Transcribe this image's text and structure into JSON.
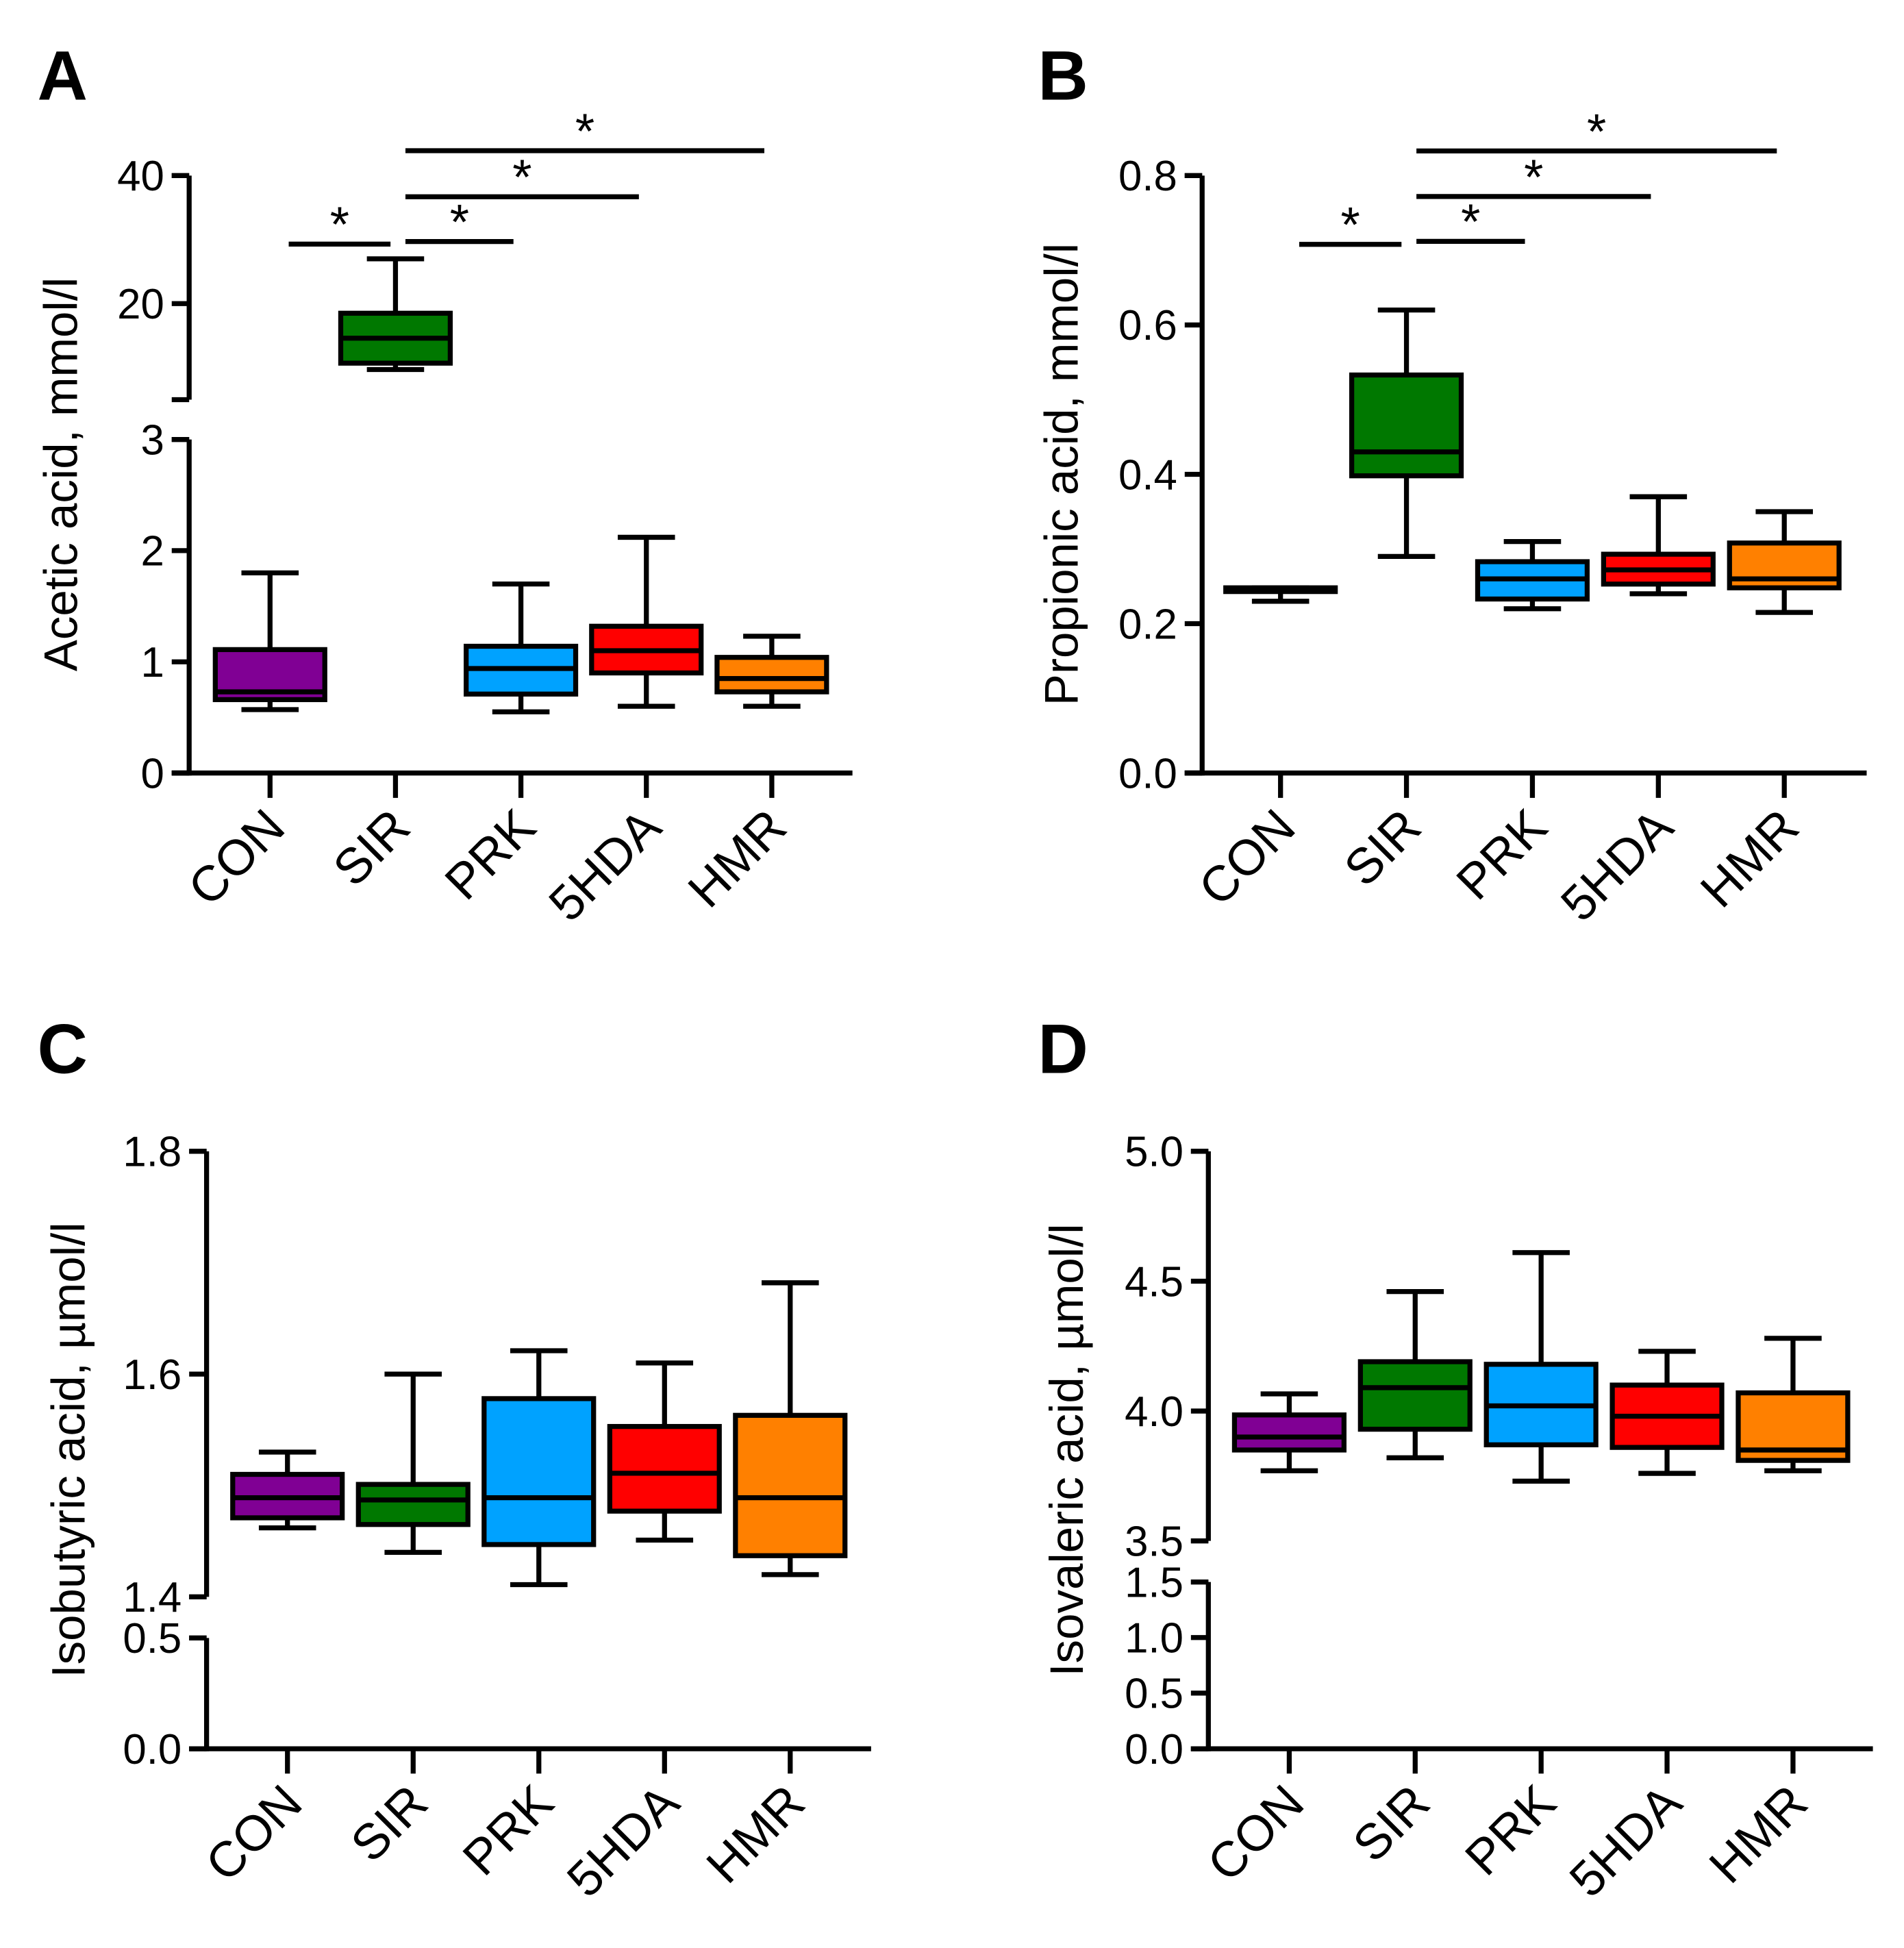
{
  "colors": {
    "CON": "#800094",
    "SIR": "#007800",
    "PRK": "#00a2ff",
    "5HDA": "#ff0000",
    "HMR": "#ff8000"
  },
  "chart_data": [
    {
      "panel": "A",
      "type": "boxplot",
      "ylabel": "Acetic acid, mmol/l",
      "categories": [
        "CON",
        "SIR",
        "PRK",
        "5HDA",
        "HMR"
      ],
      "y_segments": [
        {
          "range": [
            0,
            3
          ],
          "ticks": [
            "0",
            "1",
            "2",
            "3"
          ]
        },
        {
          "range": [
            5,
            40
          ],
          "ticks": [
            "20",
            "40"
          ]
        }
      ],
      "boxes": [
        {
          "group": "CON",
          "min": 0.57,
          "q1": 0.66,
          "median": 0.73,
          "q3": 1.11,
          "max": 1.8
        },
        {
          "group": "SIR",
          "min": 9.7,
          "q1": 10.7,
          "median": 14.6,
          "q3": 18.5,
          "max": 27.0
        },
        {
          "group": "PRK",
          "min": 0.55,
          "q1": 0.71,
          "median": 0.94,
          "q3": 1.14,
          "max": 1.7
        },
        {
          "group": "5HDA",
          "min": 0.6,
          "q1": 0.9,
          "median": 1.1,
          "q3": 1.32,
          "max": 2.12
        },
        {
          "group": "HMR",
          "min": 0.6,
          "q1": 0.73,
          "median": 0.85,
          "q3": 1.04,
          "max": 1.23
        }
      ],
      "significance": [
        {
          "from": "CON",
          "to": "SIR",
          "y": 29.3,
          "label": "*"
        },
        {
          "from": "SIR",
          "to": "PRK",
          "y": 29.7,
          "label": "*"
        },
        {
          "from": "SIR",
          "to": "5HDA",
          "y": 36.7,
          "label": "*"
        },
        {
          "from": "SIR",
          "to": "HMR",
          "y": 43.9,
          "label": "*"
        }
      ]
    },
    {
      "panel": "B",
      "type": "boxplot",
      "ylabel": "Propionic acid, mmol/l",
      "categories": [
        "CON",
        "SIR",
        "PRK",
        "5HDA",
        "HMR"
      ],
      "y_segments": [
        {
          "range": [
            0,
            0.8
          ],
          "ticks": [
            "0.0",
            "0.2",
            "0.4",
            "0.6",
            "0.8"
          ]
        }
      ],
      "boxes": [
        {
          "group": "CON",
          "min": 0.23,
          "q1": 0.243,
          "median": 0.245,
          "q3": 0.248,
          "max": 0.248
        },
        {
          "group": "SIR",
          "min": 0.29,
          "q1": 0.398,
          "median": 0.43,
          "q3": 0.533,
          "max": 0.62
        },
        {
          "group": "PRK",
          "min": 0.22,
          "q1": 0.233,
          "median": 0.26,
          "q3": 0.283,
          "max": 0.31
        },
        {
          "group": "5HDA",
          "min": 0.24,
          "q1": 0.253,
          "median": 0.272,
          "q3": 0.293,
          "max": 0.37
        },
        {
          "group": "HMR",
          "min": 0.215,
          "q1": 0.248,
          "median": 0.26,
          "q3": 0.308,
          "max": 0.35
        }
      ],
      "significance": [
        {
          "from": "CON",
          "to": "SIR",
          "y": 0.708,
          "label": "*"
        },
        {
          "from": "SIR",
          "to": "PRK",
          "y": 0.712,
          "label": "*"
        },
        {
          "from": "SIR",
          "to": "5HDA",
          "y": 0.772,
          "label": "*"
        },
        {
          "from": "SIR",
          "to": "HMR",
          "y": 0.833,
          "label": "*"
        }
      ]
    },
    {
      "panel": "C",
      "type": "boxplot",
      "ylabel": "Isobutyric acid, µmol/l",
      "categories": [
        "CON",
        "SIR",
        "PRK",
        "5HDA",
        "HMR"
      ],
      "y_segments": [
        {
          "range": [
            0,
            0.5
          ],
          "ticks": [
            "0.0",
            "0.5"
          ]
        },
        {
          "range": [
            1.4,
            1.8
          ],
          "ticks": [
            "1.4",
            "1.6",
            "1.8"
          ]
        }
      ],
      "boxes": [
        {
          "group": "CON",
          "min": 1.462,
          "q1": 1.471,
          "median": 1.489,
          "q3": 1.51,
          "max": 1.53
        },
        {
          "group": "SIR",
          "min": 1.44,
          "q1": 1.465,
          "median": 1.487,
          "q3": 1.501,
          "max": 1.6
        },
        {
          "group": "PRK",
          "min": 1.411,
          "q1": 1.447,
          "median": 1.489,
          "q3": 1.578,
          "max": 1.621
        },
        {
          "group": "5HDA",
          "min": 1.451,
          "q1": 1.477,
          "median": 1.511,
          "q3": 1.553,
          "max": 1.61
        },
        {
          "group": "HMR",
          "min": 1.42,
          "q1": 1.437,
          "median": 1.489,
          "q3": 1.563,
          "max": 1.682
        }
      ],
      "significance": []
    },
    {
      "panel": "D",
      "type": "boxplot",
      "ylabel": "Isovaleric acid, µmol/l",
      "categories": [
        "CON",
        "SIR",
        "PRK",
        "5HDA",
        "HMR"
      ],
      "y_segments": [
        {
          "range": [
            0,
            1.5
          ],
          "ticks": [
            "0.0",
            "0.5",
            "1.0",
            "1.5"
          ]
        },
        {
          "range": [
            3.5,
            5.0
          ],
          "ticks": [
            "3.5",
            "4.0",
            "4.5",
            "5.0"
          ]
        }
      ],
      "boxes": [
        {
          "group": "CON",
          "min": 3.77,
          "q1": 3.85,
          "median": 3.9,
          "q3": 3.985,
          "max": 4.066
        },
        {
          "group": "SIR",
          "min": 3.82,
          "q1": 3.93,
          "median": 4.09,
          "q3": 4.19,
          "max": 4.46
        },
        {
          "group": "PRK",
          "min": 3.73,
          "q1": 3.87,
          "median": 4.02,
          "q3": 4.18,
          "max": 4.61
        },
        {
          "group": "5HDA",
          "min": 3.76,
          "q1": 3.86,
          "median": 3.98,
          "q3": 4.1,
          "max": 4.23
        },
        {
          "group": "HMR",
          "min": 3.77,
          "q1": 3.81,
          "median": 3.85,
          "q3": 4.07,
          "max": 4.28
        }
      ],
      "significance": []
    }
  ]
}
